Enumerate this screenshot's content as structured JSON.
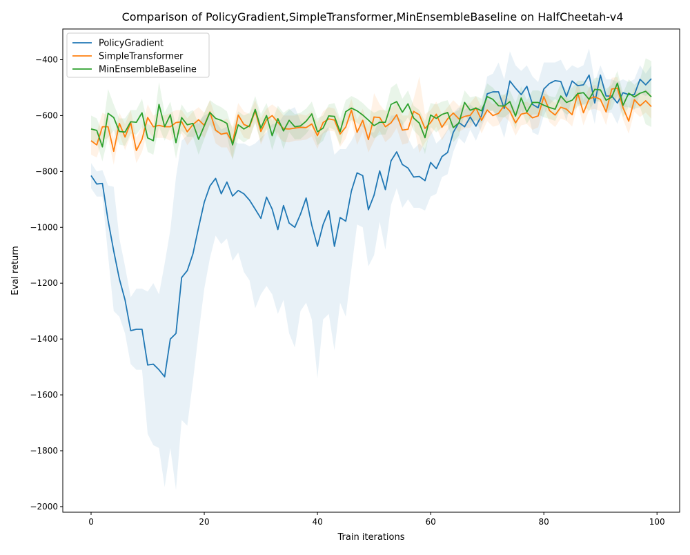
{
  "chart_data": {
    "type": "line",
    "title": "Comparison of PolicyGradient,SimpleTransformer,MinEnsembleBaseline on HalfCheetah-v4",
    "xlabel": "Train iterations",
    "ylabel": "Eval return",
    "xlim": [
      -5,
      104
    ],
    "ylim": [
      -2020,
      -290
    ],
    "xticks": [
      0,
      20,
      40,
      60,
      80,
      100
    ],
    "yticks": [
      -2000,
      -1800,
      -1600,
      -1400,
      -1200,
      -1000,
      -800,
      -600,
      -400
    ],
    "grid": false,
    "legend_position": "top-left",
    "series": [
      {
        "name": "PolicyGradient",
        "color": "#1f77b4",
        "band_color": "#1f77b4",
        "values": [
          -815,
          -845,
          -843,
          -975,
          -1085,
          -1185,
          -1260,
          -1370,
          -1365,
          -1365,
          -1493,
          -1490,
          -1510,
          -1535,
          -1400,
          -1380,
          -1180,
          -1155,
          -1095,
          -1000,
          -910,
          -852,
          -825,
          -880,
          -838,
          -888,
          -868,
          -880,
          -903,
          -935,
          -968,
          -892,
          -935,
          -1008,
          -922,
          -985,
          -1000,
          -953,
          -895,
          -993,
          -1068,
          -990,
          -940,
          -1068,
          -965,
          -978,
          -870,
          -805,
          -815,
          -937,
          -885,
          -798,
          -865,
          -762,
          -730,
          -775,
          -788,
          -820,
          -818,
          -833,
          -768,
          -790,
          -747,
          -732,
          -660,
          -625,
          -640,
          -605,
          -638,
          -600,
          -522,
          -515,
          -515,
          -575,
          -476,
          -502,
          -525,
          -495,
          -560,
          -572,
          -505,
          -485,
          -475,
          -478,
          -532,
          -476,
          -493,
          -490,
          -455,
          -555,
          -455,
          -530,
          -530,
          -555,
          -518,
          -525,
          -525,
          -470,
          -490,
          -468
        ],
        "upper": [
          -770,
          -800,
          -795,
          -850,
          -855,
          -1040,
          -1140,
          -1250,
          -1220,
          -1220,
          -1230,
          -1200,
          -1240,
          -1130,
          -1010,
          -820,
          -690,
          -670,
          -640,
          -620,
          -600,
          -590,
          -620,
          -650,
          -640,
          -690,
          -700,
          -700,
          -710,
          -700,
          -680,
          -660,
          -630,
          -630,
          -600,
          -580,
          -570,
          -620,
          -650,
          -650,
          -680,
          -660,
          -640,
          -740,
          -720,
          -720,
          -690,
          -650,
          -630,
          -660,
          -660,
          -610,
          -650,
          -600,
          -600,
          -620,
          -680,
          -720,
          -700,
          -720,
          -650,
          -700,
          -680,
          -650,
          -590,
          -570,
          -580,
          -560,
          -580,
          -560,
          -460,
          -450,
          -410,
          -470,
          -370,
          -420,
          -440,
          -420,
          -460,
          -480,
          -410,
          -410,
          -410,
          -400,
          -440,
          -420,
          -430,
          -420,
          -360,
          -480,
          -420,
          -470,
          -470,
          -480,
          -470,
          -480,
          -470,
          -420,
          -450,
          -420
        ],
        "lower": [
          -860,
          -890,
          -890,
          -1100,
          -1300,
          -1320,
          -1380,
          -1490,
          -1510,
          -1510,
          -1740,
          -1780,
          -1790,
          -1930,
          -1790,
          -1940,
          -1690,
          -1710,
          -1550,
          -1380,
          -1220,
          -1110,
          -1030,
          -1060,
          -1040,
          -1120,
          -1090,
          -1160,
          -1190,
          -1290,
          -1240,
          -1210,
          -1240,
          -1310,
          -1260,
          -1380,
          -1430,
          -1300,
          -1270,
          -1330,
          -1540,
          -1330,
          -1310,
          -1440,
          -1270,
          -1320,
          -1150,
          -990,
          -1000,
          -1140,
          -1100,
          -980,
          -1080,
          -920,
          -860,
          -930,
          -900,
          -930,
          -930,
          -940,
          -890,
          -880,
          -820,
          -810,
          -730,
          -680,
          -700,
          -650,
          -690,
          -640,
          -590,
          -580,
          -620,
          -680,
          -590,
          -590,
          -600,
          -570,
          -660,
          -670,
          -600,
          -560,
          -540,
          -560,
          -620,
          -530,
          -560,
          -560,
          -550,
          -630,
          -500,
          -590,
          -590,
          -630,
          -570,
          -570,
          -580,
          -520,
          -530,
          -520
        ]
      },
      {
        "name": "SimpleTransformer",
        "color": "#ff7f0e",
        "band_color": "#ff7f0e",
        "values": [
          -690,
          -705,
          -640,
          -640,
          -728,
          -628,
          -677,
          -625,
          -725,
          -685,
          -607,
          -640,
          -635,
          -640,
          -640,
          -625,
          -622,
          -658,
          -632,
          -615,
          -635,
          -587,
          -652,
          -667,
          -662,
          -697,
          -598,
          -632,
          -640,
          -583,
          -657,
          -615,
          -600,
          -624,
          -647,
          -648,
          -645,
          -642,
          -643,
          -630,
          -672,
          -625,
          -612,
          -616,
          -666,
          -641,
          -580,
          -660,
          -617,
          -686,
          -605,
          -607,
          -640,
          -626,
          -597,
          -652,
          -649,
          -585,
          -597,
          -646,
          -625,
          -595,
          -642,
          -612,
          -591,
          -612,
          -603,
          -599,
          -572,
          -617,
          -580,
          -600,
          -592,
          -564,
          -584,
          -626,
          -595,
          -590,
          -608,
          -601,
          -532,
          -582,
          -598,
          -570,
          -577,
          -597,
          -520,
          -590,
          -540,
          -533,
          -542,
          -587,
          -505,
          -502,
          -572,
          -620,
          -543,
          -565,
          -547,
          -568
        ],
        "upper": [
          -640,
          -660,
          -590,
          -600,
          -680,
          -590,
          -630,
          -580,
          -680,
          -640,
          -560,
          -600,
          -590,
          -600,
          -590,
          -580,
          -580,
          -610,
          -585,
          -570,
          -590,
          -545,
          -605,
          -620,
          -610,
          -640,
          -555,
          -585,
          -595,
          -545,
          -610,
          -575,
          -560,
          -575,
          -600,
          -600,
          -600,
          -595,
          -600,
          -585,
          -625,
          -585,
          -570,
          -575,
          -620,
          -600,
          -540,
          -615,
          -575,
          -640,
          -520,
          -560,
          -585,
          -575,
          -550,
          -600,
          -600,
          -540,
          -460,
          -595,
          -580,
          -550,
          -595,
          -570,
          -545,
          -565,
          -560,
          -555,
          -530,
          -570,
          -540,
          -560,
          -550,
          -525,
          -545,
          -580,
          -555,
          -550,
          -565,
          -560,
          -495,
          -540,
          -555,
          -530,
          -535,
          -555,
          -480,
          -545,
          -500,
          -490,
          -500,
          -540,
          -465,
          -462,
          -530,
          -575,
          -500,
          -525,
          -505,
          -525
        ],
        "lower": [
          -740,
          -750,
          -690,
          -680,
          -776,
          -666,
          -724,
          -670,
          -770,
          -730,
          -654,
          -680,
          -680,
          -680,
          -690,
          -670,
          -664,
          -706,
          -679,
          -660,
          -680,
          -629,
          -699,
          -714,
          -714,
          -754,
          -641,
          -679,
          -685,
          -621,
          -704,
          -655,
          -640,
          -673,
          -694,
          -696,
          -690,
          -689,
          -686,
          -675,
          -719,
          -665,
          -654,
          -657,
          -712,
          -682,
          -620,
          -705,
          -659,
          -732,
          -690,
          -654,
          -695,
          -677,
          -644,
          -704,
          -698,
          -630,
          -734,
          -697,
          -670,
          -640,
          -689,
          -654,
          -637,
          -659,
          -646,
          -643,
          -614,
          -664,
          -620,
          -640,
          -634,
          -603,
          -623,
          -672,
          -635,
          -630,
          -651,
          -642,
          -569,
          -624,
          -641,
          -610,
          -619,
          -639,
          -560,
          -635,
          -580,
          -576,
          -584,
          -634,
          -545,
          -542,
          -614,
          -665,
          -586,
          -605,
          -589,
          -611
        ]
      },
      {
        "name": "MinEnsembleBaseline",
        "color": "#2ca02c",
        "band_color": "#2ca02c",
        "values": [
          -648,
          -653,
          -712,
          -592,
          -607,
          -657,
          -659,
          -622,
          -624,
          -590,
          -680,
          -690,
          -560,
          -640,
          -597,
          -697,
          -607,
          -633,
          -628,
          -685,
          -637,
          -589,
          -610,
          -617,
          -628,
          -705,
          -633,
          -648,
          -636,
          -578,
          -645,
          -600,
          -672,
          -611,
          -655,
          -617,
          -640,
          -637,
          -620,
          -594,
          -658,
          -645,
          -601,
          -603,
          -658,
          -586,
          -573,
          -583,
          -598,
          -616,
          -636,
          -624,
          -624,
          -560,
          -550,
          -588,
          -558,
          -609,
          -627,
          -679,
          -598,
          -610,
          -596,
          -589,
          -643,
          -626,
          -553,
          -581,
          -573,
          -583,
          -532,
          -542,
          -565,
          -566,
          -550,
          -602,
          -537,
          -587,
          -553,
          -553,
          -563,
          -571,
          -577,
          -530,
          -553,
          -545,
          -521,
          -518,
          -542,
          -506,
          -508,
          -545,
          -534,
          -484,
          -563,
          -520,
          -533,
          -520,
          -513,
          -533
        ],
        "upper": [
          -600,
          -610,
          -660,
          -505,
          -560,
          -610,
          -610,
          -580,
          -580,
          -540,
          -630,
          -640,
          -480,
          -590,
          -550,
          -640,
          -560,
          -590,
          -580,
          -630,
          -590,
          -545,
          -560,
          -570,
          -585,
          -650,
          -585,
          -600,
          -590,
          -530,
          -595,
          -555,
          -620,
          -565,
          -590,
          -575,
          -595,
          -590,
          -575,
          -550,
          -610,
          -600,
          -560,
          -555,
          -610,
          -545,
          -530,
          -540,
          -555,
          -575,
          -590,
          -580,
          -580,
          -500,
          -485,
          -540,
          -510,
          -565,
          -580,
          -620,
          -555,
          -560,
          -550,
          -545,
          -590,
          -580,
          -510,
          -535,
          -530,
          -540,
          -485,
          -500,
          -525,
          -525,
          -510,
          -555,
          -495,
          -545,
          -510,
          -510,
          -520,
          -530,
          -535,
          -485,
          -510,
          -500,
          -475,
          -475,
          -500,
          -465,
          -465,
          -505,
          -490,
          -440,
          -520,
          -470,
          -490,
          -470,
          -395,
          -405
        ],
        "lower": [
          -696,
          -696,
          -764,
          -679,
          -654,
          -704,
          -708,
          -664,
          -668,
          -640,
          -730,
          -740,
          -640,
          -690,
          -644,
          -754,
          -654,
          -676,
          -676,
          -740,
          -684,
          -633,
          -660,
          -664,
          -671,
          -760,
          -681,
          -696,
          -682,
          -626,
          -695,
          -645,
          -724,
          -657,
          -720,
          -659,
          -685,
          -684,
          -665,
          -638,
          -706,
          -690,
          -642,
          -651,
          -706,
          -627,
          -616,
          -626,
          -641,
          -657,
          -682,
          -668,
          -668,
          -620,
          -615,
          -636,
          -606,
          -653,
          -674,
          -738,
          -641,
          -660,
          -642,
          -633,
          -696,
          -672,
          -596,
          -627,
          -616,
          -626,
          -579,
          -584,
          -605,
          -607,
          -590,
          -649,
          -579,
          -629,
          -596,
          -596,
          -606,
          -612,
          -619,
          -575,
          -596,
          -590,
          -567,
          -561,
          -584,
          -547,
          -551,
          -585,
          -578,
          -528,
          -606,
          -570,
          -576,
          -570,
          -631,
          -641
        ]
      }
    ]
  }
}
